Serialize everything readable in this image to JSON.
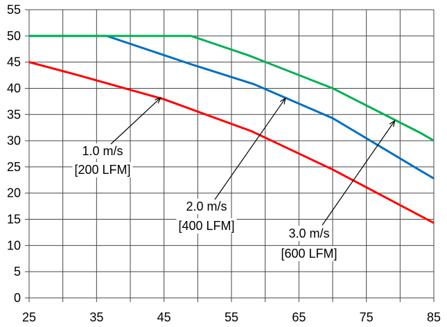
{
  "chart_data": {
    "type": "line",
    "title": "",
    "xlabel": "",
    "ylabel": "",
    "xlim": [
      25,
      85
    ],
    "ylim": [
      0,
      55
    ],
    "x_ticks": [
      25,
      35,
      45,
      55,
      65,
      75,
      85
    ],
    "x_grid_step": 5,
    "y_ticks": [
      0,
      5,
      10,
      15,
      20,
      25,
      30,
      35,
      40,
      45,
      50,
      55
    ],
    "grid": true,
    "series": [
      {
        "name": "1.0 m/s [200 LFM]",
        "color": "#ff0000",
        "points": [
          [
            25,
            45
          ],
          [
            32,
            42.6
          ],
          [
            45,
            37.9
          ],
          [
            58,
            31.8
          ],
          [
            70,
            24.5
          ],
          [
            85,
            14.3
          ]
        ]
      },
      {
        "name": "2.0 m/s [400 LFM]",
        "color": "#0070c0",
        "points": [
          [
            25,
            50
          ],
          [
            36.5,
            50
          ],
          [
            49,
            44.6
          ],
          [
            58.3,
            40.8
          ],
          [
            70,
            34.3
          ],
          [
            83,
            24.3
          ],
          [
            85,
            22.8
          ]
        ]
      },
      {
        "name": "3.0 m/s [600 LFM]",
        "color": "#00b050",
        "points": [
          [
            25,
            50
          ],
          [
            49,
            50
          ],
          [
            57.5,
            46.3
          ],
          [
            70,
            40
          ],
          [
            83,
            31.5
          ],
          [
            85,
            30
          ]
        ]
      }
    ],
    "annotations": [
      {
        "line1": "1.0 m/s",
        "line2": "[200 LFM]",
        "points_to": [
          44.5,
          38.2
        ]
      },
      {
        "line1": "2.0 m/s",
        "line2": "[400 LFM]",
        "points_to": [
          63,
          38.1
        ]
      },
      {
        "line1": "3.0 m/s",
        "line2": "[600 LFM]",
        "points_to": [
          79.2,
          33.8
        ]
      }
    ]
  }
}
